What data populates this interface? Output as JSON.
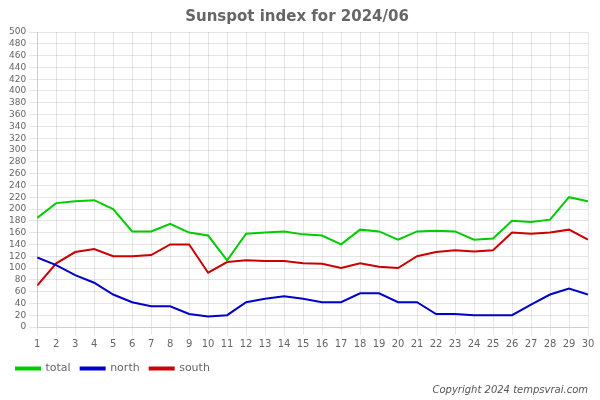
{
  "chart_data": {
    "type": "line",
    "title": "Sunspot index for 2024/06",
    "x": [
      1,
      2,
      3,
      4,
      5,
      6,
      7,
      8,
      9,
      10,
      11,
      12,
      13,
      14,
      15,
      16,
      17,
      18,
      19,
      20,
      21,
      22,
      23,
      24,
      25,
      26,
      27,
      28,
      29,
      30
    ],
    "series": [
      {
        "name": "total",
        "color": "#00cc00",
        "values": [
          185,
          210,
          213,
          215,
          200,
          162,
          162,
          175,
          160,
          155,
          113,
          158,
          160,
          162,
          157,
          155,
          140,
          165,
          162,
          148,
          162,
          163,
          162,
          148,
          150,
          180,
          178,
          182,
          220,
          213
        ]
      },
      {
        "name": "north",
        "color": "#0000cc",
        "values": [
          118,
          105,
          88,
          75,
          55,
          42,
          35,
          35,
          22,
          18,
          20,
          42,
          48,
          52,
          48,
          42,
          42,
          57,
          57,
          42,
          42,
          22,
          22,
          20,
          20,
          20,
          38,
          55,
          65,
          55
        ]
      },
      {
        "name": "south",
        "color": "#cc0000",
        "values": [
          70,
          108,
          127,
          132,
          120,
          120,
          122,
          140,
          140,
          92,
          110,
          113,
          112,
          112,
          108,
          107,
          100,
          108,
          102,
          100,
          120,
          127,
          130,
          128,
          130,
          160,
          158,
          160,
          165,
          148
        ]
      }
    ],
    "xlim": [
      1,
      30
    ],
    "xticks": [
      1,
      2,
      3,
      4,
      5,
      6,
      7,
      8,
      9,
      10,
      11,
      12,
      13,
      14,
      15,
      16,
      17,
      18,
      19,
      20,
      21,
      22,
      23,
      24,
      25,
      26,
      27,
      28,
      29,
      30
    ],
    "ylim": [
      0,
      500
    ],
    "yticks": [
      0,
      20,
      40,
      60,
      80,
      100,
      120,
      140,
      160,
      180,
      200,
      220,
      240,
      260,
      280,
      300,
      320,
      340,
      360,
      380,
      400,
      420,
      440,
      460,
      480,
      500
    ],
    "grid": true,
    "legend": "bottom",
    "annotations": [
      "Copyright 2024 tempsvrai.com"
    ]
  }
}
